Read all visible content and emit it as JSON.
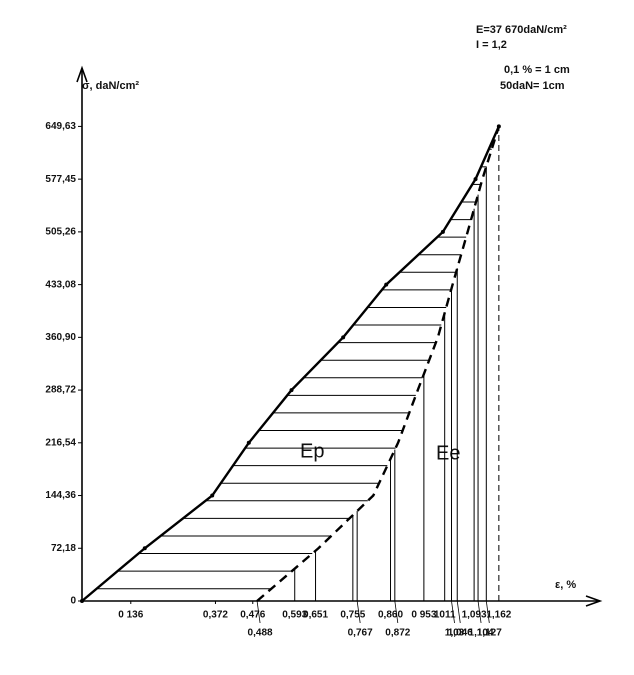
{
  "chart_data": {
    "type": "line",
    "ylabel": "σ, daN/cm²",
    "xlabel": "ε, %",
    "annotations": [
      "E=37 670daN/cm²",
      "I  = 1,2",
      "0,1 % = 1 cm",
      "50daN= 1cm",
      "Ep",
      "Ee"
    ],
    "xlim": [
      0,
      1.43
    ],
    "ylim": [
      0,
      720
    ],
    "yticks": [
      0,
      {
        "value": 72.18,
        "label": "72,18"
      },
      {
        "value": 144.36,
        "label": "144,36"
      },
      {
        "value": 216.54,
        "label": "216,54"
      },
      {
        "value": 288.72,
        "label": "288,72"
      },
      {
        "value": 360.9,
        "label": "360,90"
      },
      {
        "value": 433.08,
        "label": "433,08"
      },
      {
        "value": 505.26,
        "label": "505,26"
      },
      {
        "value": 577.45,
        "label": "577,45"
      },
      {
        "value": 649.63,
        "label": "649,63"
      }
    ],
    "xticks": [
      {
        "value": 0.136,
        "label": "0 136"
      },
      {
        "value": 0.372,
        "label": "0,372"
      },
      {
        "value": 0.476,
        "label": "0,476"
      },
      {
        "value": 0.488,
        "label": "0,488"
      },
      {
        "value": 0.593,
        "label": "0,593"
      },
      {
        "value": 0.651,
        "label": "0,651"
      },
      {
        "value": 0.755,
        "label": "0,755"
      },
      {
        "value": 0.767,
        "label": "0,767"
      },
      {
        "value": 0.86,
        "label": "0,860"
      },
      {
        "value": 0.872,
        "label": "0,872"
      },
      {
        "value": 0.953,
        "label": "0 953"
      },
      {
        "value": 1.011,
        "label": "1011"
      },
      {
        "value": 1.03,
        "label": "1,03"
      },
      {
        "value": 1.046,
        "label": "1,046"
      },
      {
        "value": 1.093,
        "label": "1,093"
      },
      {
        "value": 1.104,
        "label": "1,104"
      },
      {
        "value": 1.127,
        "label": "1,127"
      },
      {
        "value": 1.162,
        "label": "1,162"
      }
    ],
    "series": [
      {
        "style": "solid",
        "color": "#000000",
        "x": [
          0,
          0.175,
          0.363,
          0.465,
          0.584,
          0.728,
          0.848,
          1.006,
          1.097,
          1.162
        ],
        "values": [
          0,
          72.18,
          144.36,
          216.54,
          288.72,
          360.9,
          433.08,
          505.26,
          577.45,
          649.63
        ]
      },
      {
        "style": "dashed",
        "color": "#000000",
        "x": [
          0.488,
          0.659,
          0.812,
          0.881,
          0.936,
          0.992,
          1.033,
          1.075,
          1.116,
          1.162
        ],
        "values": [
          0,
          72.18,
          144.36,
          216.54,
          288.72,
          360.9,
          433.08,
          505.26,
          577.45,
          649.63
        ]
      }
    ]
  }
}
